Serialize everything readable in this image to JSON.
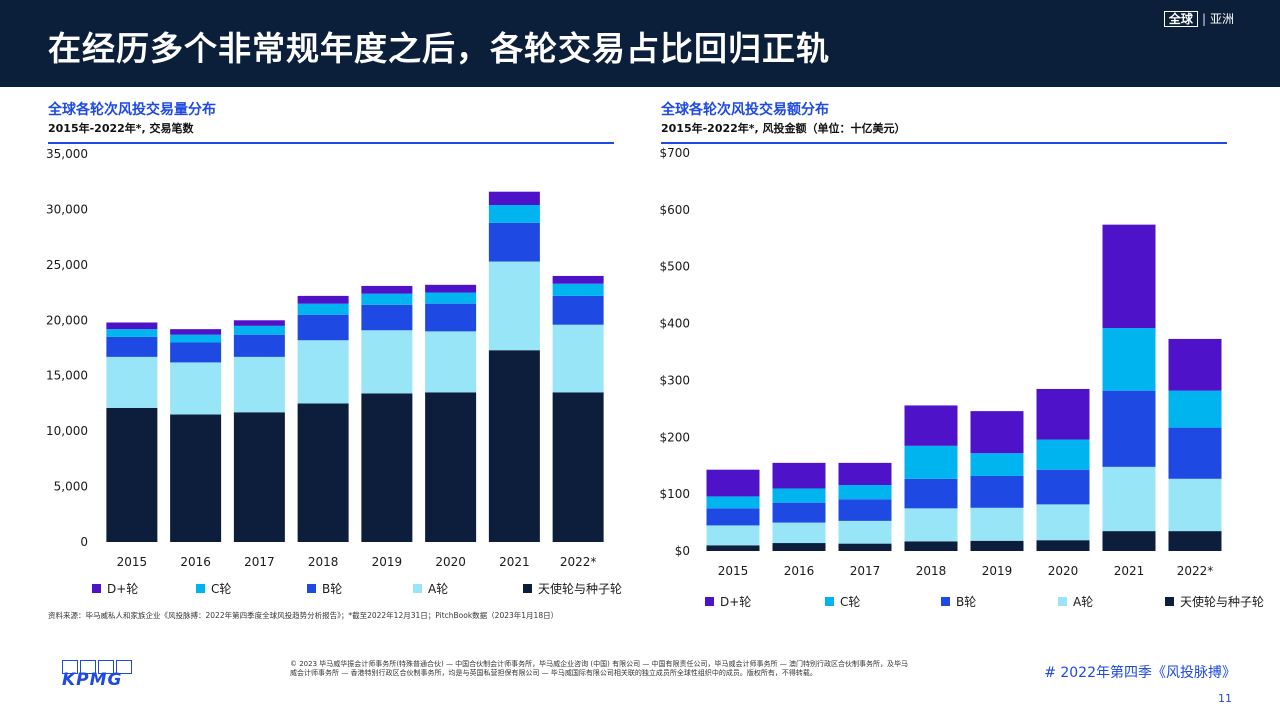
{
  "header": {
    "title": "在经历多个非常规年度之后，各轮交易占比回归正轨",
    "region_boxed": "全球",
    "region_sep": "|",
    "region_label": "亚洲"
  },
  "colors": {
    "header_bg": "#0b1f3a",
    "accent": "#1e49e2",
    "angel_seed": "#0c1e3c",
    "series_a": "#98e5f7",
    "series_b": "#1e49e2",
    "series_c": "#00b4ef",
    "series_dplus": "#4e12c8"
  },
  "chart_data": [
    {
      "type": "bar",
      "stacked": true,
      "title": "全球各轮次风投交易量分布",
      "subtitle": "2015年-2022年*, 交易笔数",
      "categories": [
        "2015",
        "2016",
        "2017",
        "2018",
        "2019",
        "2020",
        "2021",
        "2022*"
      ],
      "ylim": [
        0,
        35000
      ],
      "yticks": [
        0,
        5000,
        10000,
        15000,
        20000,
        25000,
        30000,
        35000
      ],
      "ytick_labels": [
        "0",
        "5,000",
        "10,000",
        "15,000",
        "20,000",
        "25,000",
        "30,000",
        "35,000"
      ],
      "series": [
        {
          "name": "天使轮与种子轮",
          "color": "#0c1e3c",
          "values": [
            12100,
            11500,
            11700,
            12500,
            13400,
            13500,
            17300,
            13500
          ]
        },
        {
          "name": "A轮",
          "color": "#98e5f7",
          "values": [
            4600,
            4700,
            5000,
            5700,
            5700,
            5500,
            8000,
            6100
          ]
        },
        {
          "name": "B轮",
          "color": "#1e49e2",
          "values": [
            1800,
            1800,
            2000,
            2300,
            2300,
            2500,
            3500,
            2600
          ]
        },
        {
          "name": "C轮",
          "color": "#00b4ef",
          "values": [
            700,
            700,
            800,
            1000,
            1000,
            1000,
            1600,
            1100
          ]
        },
        {
          "name": "D+轮",
          "color": "#4e12c8",
          "values": [
            600,
            500,
            500,
            700,
            700,
            700,
            1200,
            700
          ]
        }
      ],
      "legend": [
        "D+轮",
        "C轮",
        "B轮",
        "A轮",
        "天使轮与种子轮"
      ],
      "legend_position": "bottom",
      "grid": false
    },
    {
      "type": "bar",
      "stacked": true,
      "title": "全球各轮次风投交易额分布",
      "subtitle": "2015年-2022年*, 风投金额（单位：十亿美元）",
      "categories": [
        "2015",
        "2016",
        "2017",
        "2018",
        "2019",
        "2020",
        "2021",
        "2022*"
      ],
      "ylim": [
        0,
        700
      ],
      "yticks": [
        0,
        100,
        200,
        300,
        400,
        500,
        600,
        700
      ],
      "ytick_labels": [
        "$0",
        "$100",
        "$200",
        "$300",
        "$400",
        "$500",
        "$600",
        "$700"
      ],
      "series": [
        {
          "name": "天使轮与种子轮",
          "color": "#0c1e3c",
          "values": [
            10,
            14,
            13,
            17,
            18,
            19,
            35,
            35
          ]
        },
        {
          "name": "A轮",
          "color": "#98e5f7",
          "values": [
            35,
            36,
            40,
            58,
            58,
            63,
            113,
            92
          ]
        },
        {
          "name": "B轮",
          "color": "#1e49e2",
          "values": [
            30,
            35,
            38,
            52,
            56,
            61,
            134,
            90
          ]
        },
        {
          "name": "C轮",
          "color": "#00b4ef",
          "values": [
            21,
            25,
            25,
            58,
            40,
            53,
            110,
            65
          ]
        },
        {
          "name": "D+轮",
          "color": "#4e12c8",
          "values": [
            47,
            45,
            39,
            71,
            74,
            89,
            182,
            91
          ]
        }
      ],
      "legend": [
        "D+轮",
        "C轮",
        "B轮",
        "A轮",
        "天使轮与种子轮"
      ],
      "legend_position": "bottom",
      "grid": false
    }
  ],
  "source": "资料来源：毕马威私人和家族企业《风投脉搏：2022年第四季度全球风投趋势分析报告》；*截至2022年12月31日；PitchBook数据（2023年1月18日）",
  "footer": {
    "logo_text": "KPMG",
    "copyright": "© 2023 毕马威华振会计师事务所(特殊普通合伙) — 中国合伙制会计师事务所，毕马威企业咨询 (中国) 有限公司 — 中国有限责任公司，毕马威会计师事务所 — 澳门特别行政区合伙制事务所，及毕马威会计师事务所 — 香港特别行政区合伙制事务所，均是与英国私营担保有限公司 — 毕马威国际有限公司相关联的独立成员所全球性组织中的成员。版权所有，不得转载。",
    "hashtag": "# 2022年第四季《风投脉搏》",
    "page_number": "11"
  }
}
